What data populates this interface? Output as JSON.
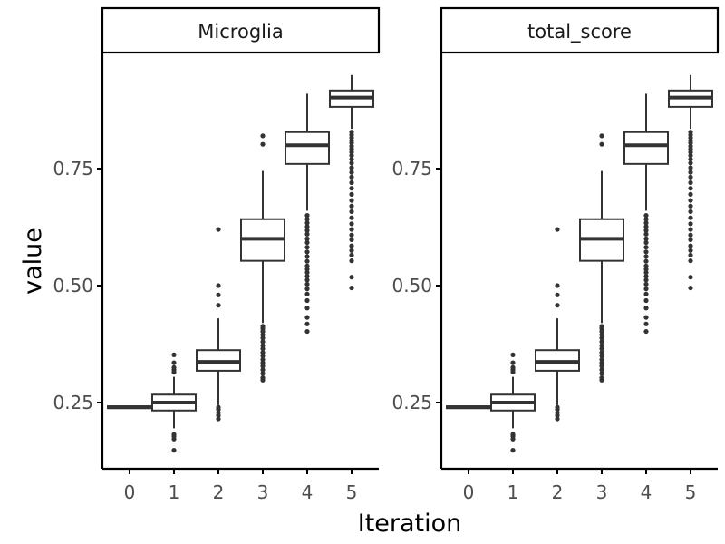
{
  "chart_data": {
    "type": "boxplot",
    "xlabel": "Iteration",
    "ylabel": "value",
    "categories": [
      "0",
      "1",
      "2",
      "3",
      "4",
      "5"
    ],
    "y_ticks": [
      0.25,
      0.5,
      0.75
    ],
    "y_tick_labels": [
      "0.25",
      "0.50",
      "0.75"
    ],
    "ylim": [
      0.1,
      0.97
    ],
    "colors": {
      "box_stroke": "#333333",
      "axis": "#000000",
      "tick_text": "#4d4d4d"
    },
    "facets": [
      {
        "title": "Microglia",
        "boxes": [
          {
            "category": "0",
            "lower_whisker": 0.238,
            "q1": 0.238,
            "median": 0.24,
            "q3": 0.242,
            "upper_whisker": 0.242,
            "outliers": []
          },
          {
            "category": "1",
            "lower_whisker": 0.195,
            "q1": 0.233,
            "median": 0.25,
            "q3": 0.267,
            "upper_whisker": 0.305,
            "outliers": [
              0.148,
              0.172,
              0.178,
              0.182,
              0.315,
              0.32,
              0.325,
              0.335,
              0.352
            ]
          },
          {
            "category": "2",
            "lower_whisker": 0.245,
            "q1": 0.318,
            "median": 0.337,
            "q3": 0.362,
            "upper_whisker": 0.43,
            "outliers": [
              0.215,
              0.222,
              0.228,
              0.235,
              0.24,
              0.458,
              0.48,
              0.5,
              0.62
            ]
          },
          {
            "category": "3",
            "lower_whisker": 0.42,
            "q1": 0.553,
            "median": 0.6,
            "q3": 0.642,
            "upper_whisker": 0.745,
            "outliers": [
              0.298,
              0.303,
              0.312,
              0.32,
              0.328,
              0.335,
              0.342,
              0.35,
              0.357,
              0.365,
              0.372,
              0.38,
              0.388,
              0.395,
              0.402,
              0.408,
              0.413,
              0.802,
              0.82
            ]
          },
          {
            "category": "4",
            "lower_whisker": 0.66,
            "q1": 0.76,
            "median": 0.8,
            "q3": 0.828,
            "upper_whisker": 0.91,
            "outliers": [
              0.402,
              0.418,
              0.432,
              0.452,
              0.468,
              0.482,
              0.493,
              0.503,
              0.512,
              0.52,
              0.528,
              0.535,
              0.542,
              0.552,
              0.562,
              0.572,
              0.582,
              0.592,
              0.6,
              0.61,
              0.618,
              0.626,
              0.634,
              0.642,
              0.65
            ]
          },
          {
            "category": "5",
            "lower_whisker": 0.835,
            "q1": 0.882,
            "median": 0.902,
            "q3": 0.917,
            "upper_whisker": 0.95,
            "outliers": [
              0.495,
              0.518,
              0.553,
              0.565,
              0.575,
              0.585,
              0.598,
              0.608,
              0.62,
              0.632,
              0.645,
              0.658,
              0.67,
              0.682,
              0.695,
              0.708,
              0.72,
              0.732,
              0.742,
              0.752,
              0.762,
              0.77,
              0.778,
              0.785,
              0.792,
              0.798,
              0.805,
              0.81,
              0.816,
              0.822,
              0.828
            ]
          }
        ]
      },
      {
        "title": "total_score",
        "boxes": [
          {
            "category": "0",
            "lower_whisker": 0.238,
            "q1": 0.238,
            "median": 0.24,
            "q3": 0.242,
            "upper_whisker": 0.242,
            "outliers": []
          },
          {
            "category": "1",
            "lower_whisker": 0.195,
            "q1": 0.233,
            "median": 0.25,
            "q3": 0.267,
            "upper_whisker": 0.305,
            "outliers": [
              0.148,
              0.172,
              0.178,
              0.182,
              0.315,
              0.32,
              0.325,
              0.335,
              0.352
            ]
          },
          {
            "category": "2",
            "lower_whisker": 0.245,
            "q1": 0.318,
            "median": 0.337,
            "q3": 0.362,
            "upper_whisker": 0.43,
            "outliers": [
              0.215,
              0.222,
              0.228,
              0.235,
              0.24,
              0.458,
              0.48,
              0.5,
              0.62
            ]
          },
          {
            "category": "3",
            "lower_whisker": 0.42,
            "q1": 0.553,
            "median": 0.6,
            "q3": 0.642,
            "upper_whisker": 0.745,
            "outliers": [
              0.298,
              0.303,
              0.312,
              0.32,
              0.328,
              0.335,
              0.342,
              0.35,
              0.357,
              0.365,
              0.372,
              0.38,
              0.388,
              0.395,
              0.402,
              0.408,
              0.413,
              0.802,
              0.82
            ]
          },
          {
            "category": "4",
            "lower_whisker": 0.66,
            "q1": 0.76,
            "median": 0.8,
            "q3": 0.828,
            "upper_whisker": 0.91,
            "outliers": [
              0.402,
              0.418,
              0.432,
              0.452,
              0.468,
              0.482,
              0.493,
              0.503,
              0.512,
              0.52,
              0.528,
              0.535,
              0.542,
              0.552,
              0.562,
              0.572,
              0.582,
              0.592,
              0.6,
              0.61,
              0.618,
              0.626,
              0.634,
              0.642,
              0.65
            ]
          },
          {
            "category": "5",
            "lower_whisker": 0.835,
            "q1": 0.882,
            "median": 0.902,
            "q3": 0.917,
            "upper_whisker": 0.95,
            "outliers": [
              0.495,
              0.518,
              0.553,
              0.565,
              0.575,
              0.585,
              0.598,
              0.608,
              0.62,
              0.632,
              0.645,
              0.658,
              0.67,
              0.682,
              0.695,
              0.708,
              0.72,
              0.732,
              0.742,
              0.752,
              0.762,
              0.77,
              0.778,
              0.785,
              0.792,
              0.798,
              0.805,
              0.81,
              0.816,
              0.822,
              0.828
            ]
          }
        ]
      }
    ]
  }
}
